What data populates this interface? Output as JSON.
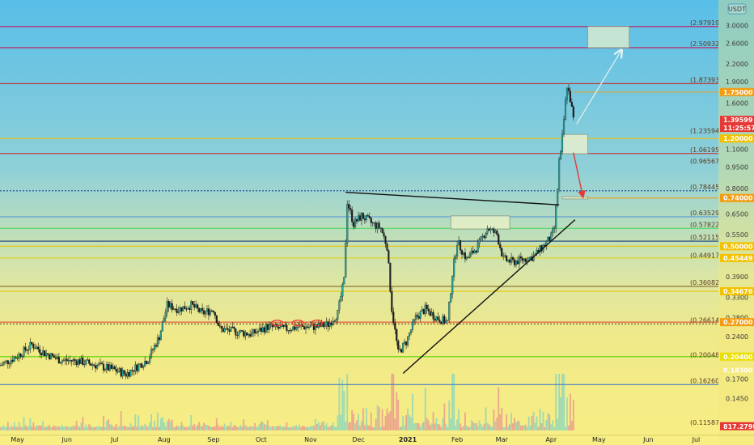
{
  "chart_data": {
    "type": "candlestick",
    "currency": "USDT",
    "y_scale": "log",
    "ylim": [
      0.112,
      3.6
    ],
    "x_range": [
      "2020-04-20",
      "2021-07-15"
    ],
    "y_ticks": [
      "3.0000",
      "2.6000",
      "2.2000",
      "1.9000",
      "1.6000",
      "1.4000",
      "1.1000",
      "0.9500",
      "0.8000",
      "0.6500",
      "0.5500",
      "0.4500",
      "0.3900",
      "0.3300",
      "0.2800",
      "0.2400",
      "0.1700",
      "0.1450"
    ],
    "x_ticks": [
      {
        "date": "2020-05-01",
        "label": "May"
      },
      {
        "date": "2020-06-01",
        "label": "Jun"
      },
      {
        "date": "2020-07-01",
        "label": "Jul"
      },
      {
        "date": "2020-08-01",
        "label": "Aug"
      },
      {
        "date": "2020-09-01",
        "label": "Sep"
      },
      {
        "date": "2020-10-01",
        "label": "Oct"
      },
      {
        "date": "2020-11-01",
        "label": "Nov"
      },
      {
        "date": "2020-12-01",
        "label": "Dec"
      },
      {
        "date": "2021-01-01",
        "label": "2021"
      },
      {
        "date": "2021-02-01",
        "label": "Feb"
      },
      {
        "date": "2021-03-01",
        "label": "Mar"
      },
      {
        "date": "2021-04-01",
        "label": "Apr"
      },
      {
        "date": "2021-05-01",
        "label": "May"
      },
      {
        "date": "2021-06-01",
        "label": "Jun"
      },
      {
        "date": "2021-07-01",
        "label": "Jul"
      }
    ],
    "fib_levels": [
      {
        "price": 2.9791,
        "label": "(2.97919)"
      },
      {
        "price": 2.5093,
        "label": "(2.50932)"
      },
      {
        "price": 1.8739,
        "label": "(1.87393)"
      },
      {
        "price": 1.2359,
        "label": "(1.23594)"
      },
      {
        "price": 1.0619,
        "label": "(1.06195)"
      },
      {
        "price": 0.9656,
        "label": "(0.96567)"
      },
      {
        "price": 0.7844,
        "label": "(0.78445)"
      },
      {
        "price": 0.6353,
        "label": "(0.63529)"
      },
      {
        "price": 0.5782,
        "label": "(0.57822)"
      },
      {
        "price": 0.5211,
        "label": "(0.52115)"
      },
      {
        "price": 0.4491,
        "label": "(0.44917)"
      },
      {
        "price": 0.3608,
        "label": "(0.36082)"
      },
      {
        "price": 0.2661,
        "label": "(0.26614)"
      },
      {
        "price": 0.2005,
        "label": "(0.20048)"
      },
      {
        "price": 0.1626,
        "label": "(0.16260)"
      },
      {
        "price": 0.1159,
        "label": "(0.11587)"
      }
    ],
    "price_tags": [
      {
        "price": 1.75,
        "label": "1.75000",
        "color": "#f39c12"
      },
      {
        "price": 1.396,
        "label": "1.39599",
        "sublabel": "11:25:57",
        "color": "#e53935"
      },
      {
        "price": 1.2,
        "label": "1.20000",
        "color": "#f2c200"
      },
      {
        "price": 0.74,
        "label": "0.74000",
        "color": "#f39c12"
      },
      {
        "price": 0.5,
        "label": "0.50000",
        "color": "#f2c200"
      },
      {
        "price": 0.4545,
        "label": "0.45449",
        "color": "#f2c200"
      },
      {
        "price": 0.3468,
        "label": "0.34676",
        "color": "#f2c200"
      },
      {
        "price": 0.27,
        "label": "0.27000",
        "color": "#f39c12"
      },
      {
        "price": 0.204,
        "label": "0.20400",
        "color": "#e8e000"
      },
      {
        "price": 0.183,
        "label": "0.18300",
        "color": "#f4e97a"
      },
      {
        "price": 0.1159,
        "label": "817.279M",
        "color": "#e53935"
      }
    ],
    "horizontal_lines": [
      {
        "price": 2.9791,
        "color": "#c2185b",
        "style": "solid",
        "extent": "full"
      },
      {
        "price": 2.5093,
        "color": "#c2185b",
        "style": "solid",
        "extent": "full"
      },
      {
        "price": 1.8739,
        "color": "#c62828",
        "style": "solid",
        "extent": "full"
      },
      {
        "price": 1.75,
        "color": "#f39c12",
        "style": "solid",
        "extent": "right"
      },
      {
        "price": 1.2,
        "color": "#f2c200",
        "style": "solid",
        "extent": "full"
      },
      {
        "price": 1.0619,
        "color": "#c62828",
        "style": "solid",
        "extent": "full"
      },
      {
        "price": 0.7844,
        "color": "#0d47a1",
        "style": "dotted",
        "extent": "full"
      },
      {
        "price": 0.74,
        "color": "#f39c12",
        "style": "solid",
        "extent": "right"
      },
      {
        "price": 0.6353,
        "color": "#5c9bd5",
        "style": "solid",
        "extent": "full"
      },
      {
        "price": 0.5782,
        "color": "#43d651",
        "style": "solid",
        "extent": "full"
      },
      {
        "price": 0.5211,
        "color": "#1a3b6b",
        "style": "solid",
        "extent": "full"
      },
      {
        "price": 0.5,
        "color": "#e6c300",
        "style": "solid",
        "extent": "full"
      },
      {
        "price": 0.4545,
        "color": "#e6d200",
        "style": "solid",
        "extent": "full"
      },
      {
        "price": 0.3608,
        "color": "#7a5a1a",
        "style": "solid",
        "extent": "full"
      },
      {
        "price": 0.3468,
        "color": "#e6c300",
        "style": "solid",
        "extent": "full"
      },
      {
        "price": 0.27,
        "color": "#e53935",
        "style": "solid",
        "extent": "full"
      },
      {
        "price": 0.2661,
        "color": "#6d4c1a",
        "style": "dotted",
        "extent": "full"
      },
      {
        "price": 0.204,
        "color": "#55d400",
        "style": "solid",
        "extent": "full"
      },
      {
        "price": 0.1626,
        "color": "#4a7fc1",
        "style": "solid",
        "extent": "full"
      }
    ],
    "trendlines": [
      {
        "from": [
          "2020-11-23",
          0.775
        ],
        "to": [
          "2021-04-06",
          0.7
        ],
        "color": "#111111"
      },
      {
        "from": [
          "2020-12-29",
          0.178
        ],
        "to": [
          "2021-04-16",
          0.62
        ],
        "color": "#111111"
      }
    ],
    "zones": [
      {
        "from": [
          "2021-04-24",
          2.98
        ],
        "to": [
          "2021-05-20",
          2.51
        ],
        "color": "#d6ead0"
      },
      {
        "from": [
          "2021-04-08",
          1.24
        ],
        "to": [
          "2021-04-24",
          1.06
        ],
        "color": "#e6f0d0"
      },
      {
        "from": [
          "2021-01-28",
          0.64
        ],
        "to": [
          "2021-03-06",
          0.575
        ],
        "color": "#e6f0c8"
      },
      {
        "from": [
          "2021-04-08",
          0.748
        ],
        "to": [
          "2021-04-24",
          0.734
        ],
        "color": "#e6f0d0"
      }
    ],
    "arrows": [
      {
        "from": [
          "2021-04-17",
          1.35
        ],
        "to": [
          "2021-05-15",
          2.45
        ],
        "color": "#d8ecec"
      },
      {
        "from": [
          "2021-04-15",
          1.07
        ],
        "to": [
          "2021-04-21",
          0.745
        ],
        "color": "#e53935"
      }
    ],
    "circle_markers": [
      {
        "date": "2020-10-11",
        "price": 0.268
      },
      {
        "date": "2020-10-24",
        "price": 0.268
      },
      {
        "date": "2020-11-05",
        "price": 0.268
      }
    ],
    "price_path": [
      [
        "2020-04-20",
        0.19
      ],
      [
        "2020-05-01",
        0.205
      ],
      [
        "2020-05-10",
        0.225
      ],
      [
        "2020-05-18",
        0.21
      ],
      [
        "2020-05-28",
        0.198
      ],
      [
        "2020-06-08",
        0.197
      ],
      [
        "2020-06-20",
        0.19
      ],
      [
        "2020-07-01",
        0.183
      ],
      [
        "2020-07-08",
        0.177
      ],
      [
        "2020-07-15",
        0.188
      ],
      [
        "2020-07-22",
        0.2
      ],
      [
        "2020-07-29",
        0.24
      ],
      [
        "2020-08-03",
        0.31
      ],
      [
        "2020-08-10",
        0.3
      ],
      [
        "2020-08-18",
        0.31
      ],
      [
        "2020-08-25",
        0.29
      ],
      [
        "2020-09-01",
        0.3
      ],
      [
        "2020-09-05",
        0.255
      ],
      [
        "2020-09-15",
        0.25
      ],
      [
        "2020-09-25",
        0.245
      ],
      [
        "2020-10-05",
        0.26
      ],
      [
        "2020-10-15",
        0.255
      ],
      [
        "2020-10-25",
        0.26
      ],
      [
        "2020-11-05",
        0.26
      ],
      [
        "2020-11-12",
        0.265
      ],
      [
        "2020-11-18",
        0.29
      ],
      [
        "2020-11-22",
        0.38
      ],
      [
        "2020-11-24",
        0.72
      ],
      [
        "2020-11-28",
        0.6
      ],
      [
        "2020-12-03",
        0.64
      ],
      [
        "2020-12-10",
        0.6
      ],
      [
        "2020-12-15",
        0.58
      ],
      [
        "2020-12-19",
        0.5
      ],
      [
        "2020-12-22",
        0.3
      ],
      [
        "2020-12-26",
        0.21
      ],
      [
        "2020-12-31",
        0.23
      ],
      [
        "2021-01-06",
        0.28
      ],
      [
        "2021-01-12",
        0.3
      ],
      [
        "2021-01-19",
        0.28
      ],
      [
        "2021-01-26",
        0.27
      ],
      [
        "2021-01-29",
        0.4
      ],
      [
        "2021-02-01",
        0.52
      ],
      [
        "2021-02-07",
        0.45
      ],
      [
        "2021-02-14",
        0.5
      ],
      [
        "2021-02-20",
        0.58
      ],
      [
        "2021-02-26",
        0.55
      ],
      [
        "2021-03-02",
        0.45
      ],
      [
        "2021-03-08",
        0.44
      ],
      [
        "2021-03-15",
        0.45
      ],
      [
        "2021-03-21",
        0.46
      ],
      [
        "2021-03-27",
        0.5
      ],
      [
        "2021-04-01",
        0.54
      ],
      [
        "2021-04-03",
        0.58
      ],
      [
        "2021-04-05",
        0.8
      ],
      [
        "2021-04-06",
        1.0
      ],
      [
        "2021-04-07",
        1.05
      ],
      [
        "2021-04-09",
        1.4
      ],
      [
        "2021-04-11",
        1.85
      ],
      [
        "2021-04-13",
        1.65
      ],
      [
        "2021-04-15",
        1.4
      ]
    ],
    "volume_max": 817279000
  }
}
